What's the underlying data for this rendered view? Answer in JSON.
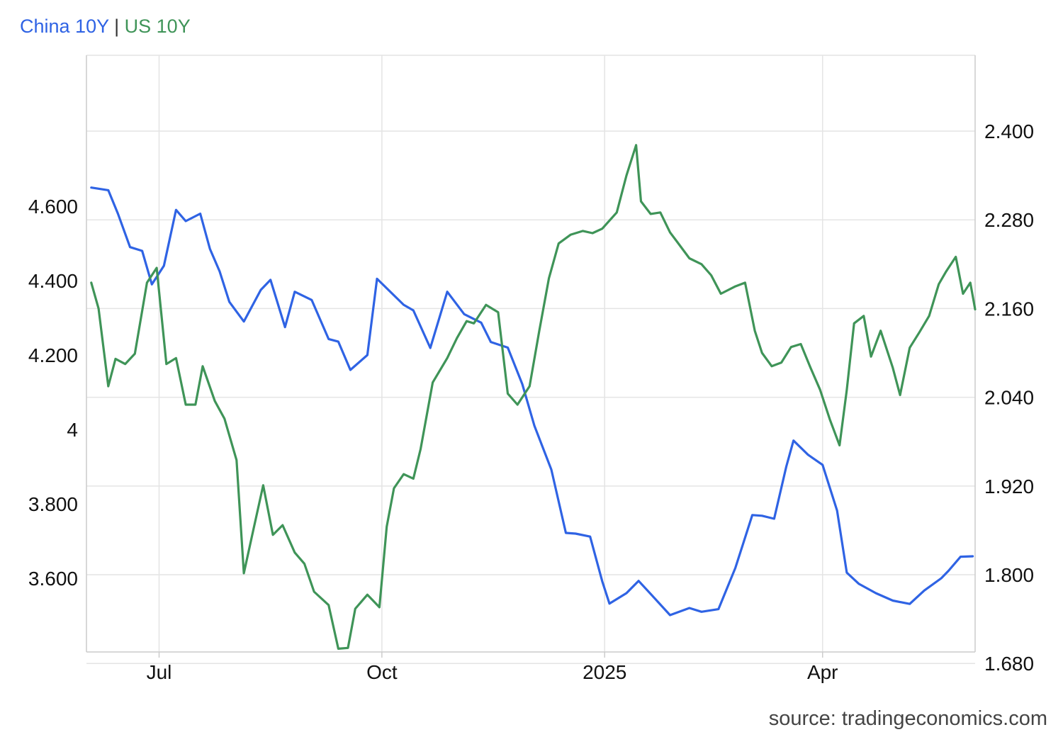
{
  "legend": {
    "series1": "China 10Y",
    "separator": "|",
    "series2": "US 10Y"
  },
  "source": "source: tradingeconomics.com",
  "colors": {
    "china": "#2f63e4",
    "us": "#3f9458",
    "grid": "#e4e4e4",
    "axis": "#cccccc"
  },
  "chart_data": {
    "type": "line",
    "xlim": [
      "2024-06-01",
      "2025-06-03"
    ],
    "x_ticks": [
      {
        "label": "Jul",
        "date": "2024-07-01"
      },
      {
        "label": "Oct",
        "date": "2024-10-01"
      },
      {
        "label": "2025",
        "date": "2025-01-01"
      },
      {
        "label": "Apr",
        "date": "2025-04-01"
      }
    ],
    "y_left": {
      "lim": [
        3.4,
        4.6
      ],
      "ticks": [
        3.6,
        3.8,
        4.0,
        4.2,
        4.4,
        4.6
      ],
      "labels": [
        "3.600",
        "3.800",
        "4",
        "4.200",
        "4.400",
        "4.600"
      ]
    },
    "y_right": {
      "lim": [
        1.6,
        2.4
      ],
      "ticks": [
        1.68,
        1.8,
        1.92,
        2.04,
        2.16,
        2.28,
        2.4
      ],
      "labels": [
        "1.680",
        "1.800",
        "1.920",
        "2.040",
        "2.160",
        "2.280",
        "2.400"
      ]
    },
    "series": [
      {
        "name": "China 10Y",
        "axis": "left",
        "points": [
          [
            "2024-06-03",
            4.65
          ],
          [
            "2024-06-10",
            4.643
          ],
          [
            "2024-06-14",
            4.58
          ],
          [
            "2024-06-19",
            4.49
          ],
          [
            "2024-06-24",
            4.48
          ],
          [
            "2024-06-28",
            4.39
          ],
          [
            "2024-07-03",
            4.44
          ],
          [
            "2024-07-08",
            4.59
          ],
          [
            "2024-07-12",
            4.56
          ],
          [
            "2024-07-18",
            4.58
          ],
          [
            "2024-07-22",
            4.485
          ],
          [
            "2024-07-26",
            4.425
          ],
          [
            "2024-07-30",
            4.343
          ],
          [
            "2024-08-05",
            4.29
          ],
          [
            "2024-08-12",
            4.375
          ],
          [
            "2024-08-16",
            4.402
          ],
          [
            "2024-08-22",
            4.275
          ],
          [
            "2024-08-26",
            4.37
          ],
          [
            "2024-09-02",
            4.348
          ],
          [
            "2024-09-09",
            4.243
          ],
          [
            "2024-09-13",
            4.236
          ],
          [
            "2024-09-18",
            4.16
          ],
          [
            "2024-09-25",
            4.2
          ],
          [
            "2024-09-29",
            4.405
          ],
          [
            "2024-10-10",
            4.335
          ],
          [
            "2024-10-14",
            4.32
          ],
          [
            "2024-10-21",
            4.219
          ],
          [
            "2024-10-28",
            4.37
          ],
          [
            "2024-11-04",
            4.31
          ],
          [
            "2024-11-11",
            4.287
          ],
          [
            "2024-11-15",
            4.235
          ],
          [
            "2024-11-22",
            4.22
          ],
          [
            "2024-11-28",
            4.122
          ],
          [
            "2024-12-03",
            4.01
          ],
          [
            "2024-12-10",
            3.892
          ],
          [
            "2024-12-16",
            3.722
          ],
          [
            "2024-12-20",
            3.72
          ],
          [
            "2024-12-26",
            3.712
          ],
          [
            "2024-12-31",
            3.592
          ],
          [
            "2025-01-03",
            3.532
          ],
          [
            "2025-01-10",
            3.56
          ],
          [
            "2025-01-15",
            3.593
          ],
          [
            "2025-01-20",
            3.558
          ],
          [
            "2025-01-28",
            3.501
          ],
          [
            "2025-02-05",
            3.52
          ],
          [
            "2025-02-10",
            3.51
          ],
          [
            "2025-02-17",
            3.517
          ],
          [
            "2025-02-24",
            3.628
          ],
          [
            "2025-03-03",
            3.77
          ],
          [
            "2025-03-07",
            3.768
          ],
          [
            "2025-03-12",
            3.76
          ],
          [
            "2025-03-17",
            3.9
          ],
          [
            "2025-03-20",
            3.97
          ],
          [
            "2025-03-26",
            3.932
          ],
          [
            "2025-04-01",
            3.905
          ],
          [
            "2025-04-07",
            3.782
          ],
          [
            "2025-04-11",
            3.615
          ],
          [
            "2025-04-16",
            3.585
          ],
          [
            "2025-04-23",
            3.56
          ],
          [
            "2025-04-30",
            3.54
          ],
          [
            "2025-05-07",
            3.531
          ],
          [
            "2025-05-13",
            3.567
          ],
          [
            "2025-05-20",
            3.6
          ],
          [
            "2025-05-23",
            3.62
          ],
          [
            "2025-05-28",
            3.658
          ],
          [
            "2025-06-02",
            3.659
          ]
        ]
      },
      {
        "name": "US 10Y",
        "axis": "right",
        "points": [
          [
            "2024-06-03",
            2.195
          ],
          [
            "2024-06-06",
            2.16
          ],
          [
            "2024-06-10",
            2.055
          ],
          [
            "2024-06-13",
            2.092
          ],
          [
            "2024-06-17",
            2.085
          ],
          [
            "2024-06-21",
            2.099
          ],
          [
            "2024-06-26",
            2.195
          ],
          [
            "2024-06-30",
            2.215
          ],
          [
            "2024-07-04",
            2.085
          ],
          [
            "2024-07-08",
            2.093
          ],
          [
            "2024-07-12",
            2.03
          ],
          [
            "2024-07-16",
            2.03
          ],
          [
            "2024-07-19",
            2.082
          ],
          [
            "2024-07-24",
            2.035
          ],
          [
            "2024-07-28",
            2.011
          ],
          [
            "2024-08-02",
            1.955
          ],
          [
            "2024-08-05",
            1.802
          ],
          [
            "2024-08-09",
            1.862
          ],
          [
            "2024-08-13",
            1.921
          ],
          [
            "2024-08-17",
            1.854
          ],
          [
            "2024-08-21",
            1.867
          ],
          [
            "2024-08-26",
            1.83
          ],
          [
            "2024-08-30",
            1.815
          ],
          [
            "2024-09-03",
            1.777
          ],
          [
            "2024-09-09",
            1.759
          ],
          [
            "2024-09-13",
            1.7
          ],
          [
            "2024-09-17",
            1.701
          ],
          [
            "2024-09-20",
            1.754
          ],
          [
            "2024-09-25",
            1.773
          ],
          [
            "2024-09-30",
            1.756
          ],
          [
            "2024-10-03",
            1.865
          ],
          [
            "2024-10-06",
            1.917
          ],
          [
            "2024-10-10",
            1.936
          ],
          [
            "2024-10-14",
            1.93
          ],
          [
            "2024-10-17",
            1.97
          ],
          [
            "2024-10-22",
            2.06
          ],
          [
            "2024-10-28",
            2.093
          ],
          [
            "2024-11-01",
            2.12
          ],
          [
            "2024-11-05",
            2.143
          ],
          [
            "2024-11-08",
            2.14
          ],
          [
            "2024-11-13",
            2.165
          ],
          [
            "2024-11-18",
            2.155
          ],
          [
            "2024-11-22",
            2.045
          ],
          [
            "2024-11-26",
            2.03
          ],
          [
            "2024-12-01",
            2.055
          ],
          [
            "2024-12-05",
            2.13
          ],
          [
            "2024-12-09",
            2.201
          ],
          [
            "2024-12-13",
            2.248
          ],
          [
            "2024-12-18",
            2.26
          ],
          [
            "2024-12-23",
            2.265
          ],
          [
            "2024-12-27",
            2.262
          ],
          [
            "2024-12-31",
            2.268
          ],
          [
            "2025-01-06",
            2.29
          ],
          [
            "2025-01-10",
            2.34
          ],
          [
            "2025-01-14",
            2.381
          ],
          [
            "2025-01-16",
            2.305
          ],
          [
            "2025-01-20",
            2.288
          ],
          [
            "2025-01-24",
            2.29
          ],
          [
            "2025-01-28",
            2.263
          ],
          [
            "2025-01-31",
            2.25
          ],
          [
            "2025-02-05",
            2.228
          ],
          [
            "2025-02-10",
            2.22
          ],
          [
            "2025-02-14",
            2.205
          ],
          [
            "2025-02-18",
            2.18
          ],
          [
            "2025-02-24",
            2.19
          ],
          [
            "2025-02-28",
            2.195
          ],
          [
            "2025-03-04",
            2.13
          ],
          [
            "2025-03-07",
            2.1
          ],
          [
            "2025-03-11",
            2.082
          ],
          [
            "2025-03-15",
            2.087
          ],
          [
            "2025-03-19",
            2.108
          ],
          [
            "2025-03-23",
            2.112
          ],
          [
            "2025-03-27",
            2.08
          ],
          [
            "2025-03-31",
            2.05
          ],
          [
            "2025-04-04",
            2.01
          ],
          [
            "2025-04-08",
            1.975
          ],
          [
            "2025-04-11",
            2.05
          ],
          [
            "2025-04-14",
            2.14
          ],
          [
            "2025-04-18",
            2.15
          ],
          [
            "2025-04-21",
            2.095
          ],
          [
            "2025-04-25",
            2.13
          ],
          [
            "2025-04-30",
            2.08
          ],
          [
            "2025-05-03",
            2.043
          ],
          [
            "2025-05-07",
            2.107
          ],
          [
            "2025-05-11",
            2.128
          ],
          [
            "2025-05-15",
            2.15
          ],
          [
            "2025-05-19",
            2.193
          ],
          [
            "2025-05-22",
            2.21
          ],
          [
            "2025-05-26",
            2.23
          ],
          [
            "2025-05-29",
            2.18
          ],
          [
            "2025-06-01",
            2.195
          ],
          [
            "2025-06-03",
            2.159
          ]
        ]
      }
    ]
  }
}
